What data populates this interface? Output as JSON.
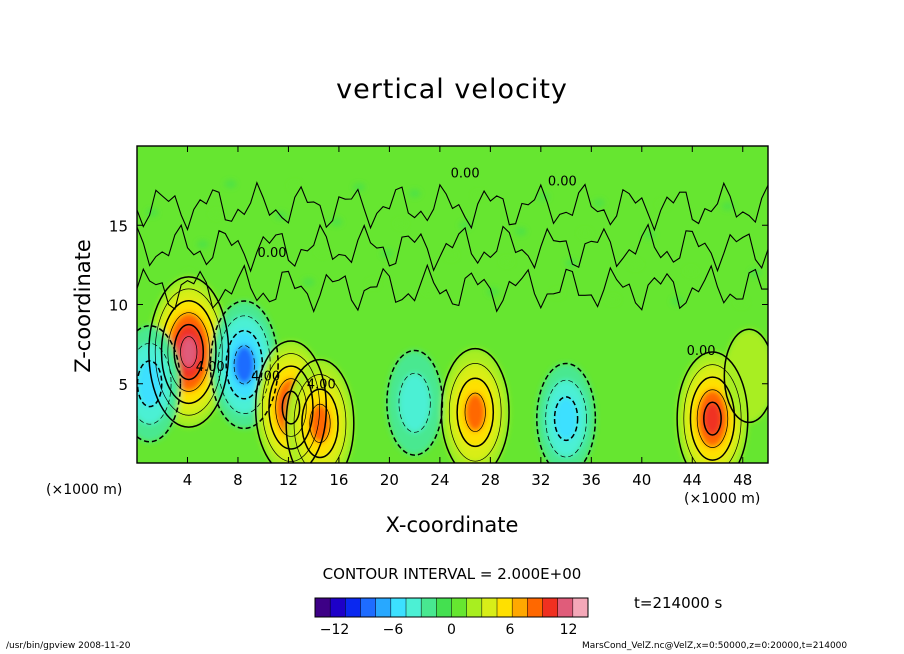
{
  "chart_data": {
    "type": "heatmap",
    "title": "vertical velocity",
    "xlabel": "X-coordinate",
    "ylabel": "Z-coordinate",
    "x_unit_label": "(×1000 m)",
    "xlim": [
      0,
      50
    ],
    "ylim": [
      0,
      20
    ],
    "x_ticks": [
      4,
      8,
      12,
      16,
      20,
      24,
      28,
      32,
      36,
      40,
      44,
      48
    ],
    "y_ticks": [
      5,
      10,
      15
    ],
    "contour_interval_label": "CONTOUR INTERVAL = 2.000E+00",
    "contour_labels": [
      {
        "text": "4.00",
        "x": 14.6,
        "z": 4.7
      },
      {
        "text": "4.00",
        "x": 10.2,
        "z": 5.2
      },
      {
        "text": "0.00",
        "x": 44.7,
        "z": 6.8
      },
      {
        "text": "0.00",
        "x": 26.0,
        "z": 18.0
      },
      {
        "text": "0.00",
        "x": 33.7,
        "z": 17.5
      },
      {
        "text": "0.00",
        "x": 10.7,
        "z": 13.0
      },
      {
        "text": "4.00",
        "x": 5.8,
        "z": 5.8
      }
    ],
    "colorbar": {
      "ticks": [
        -12,
        -6,
        0,
        6,
        12
      ],
      "range": [
        -14,
        14
      ],
      "colors": [
        "#3d0086",
        "#1d00c8",
        "#0a28f0",
        "#1e6cff",
        "#28a8ff",
        "#3ce0ff",
        "#4cf0d4",
        "#48e890",
        "#44e050",
        "#66e630",
        "#a8ee20",
        "#d8ee18",
        "#ffe000",
        "#ffa800",
        "#ff6800",
        "#f03020",
        "#e05c7a",
        "#f4a8b8"
      ]
    },
    "features": [
      {
        "sign": "positive",
        "x": 4.1,
        "z": 7.0,
        "peak": 13
      },
      {
        "sign": "negative",
        "x": 8.5,
        "z": 6.2,
        "peak": -9
      },
      {
        "sign": "negative",
        "x": 1.0,
        "z": 5.0,
        "peak": -7
      },
      {
        "sign": "positive",
        "x": 12.2,
        "z": 3.5,
        "peak": 10
      },
      {
        "sign": "positive",
        "x": 14.5,
        "z": 2.5,
        "peak": 9
      },
      {
        "sign": "negative",
        "x": 22.0,
        "z": 3.8,
        "peak": -5
      },
      {
        "sign": "positive",
        "x": 26.8,
        "z": 3.2,
        "peak": 9
      },
      {
        "sign": "negative",
        "x": 34.0,
        "z": 2.8,
        "peak": -6
      },
      {
        "sign": "positive",
        "x": 45.6,
        "z": 2.8,
        "peak": 10
      },
      {
        "sign": "positive",
        "x": 48.5,
        "z": 5.5,
        "peak": 3
      }
    ],
    "time_label": "t=214000  s"
  },
  "footer": {
    "left": "/usr/bin/gpview   2008-11-20",
    "right": "MarsCond_VelZ.nc@VelZ,x=0:50000,z=0:20000,t=214000"
  }
}
